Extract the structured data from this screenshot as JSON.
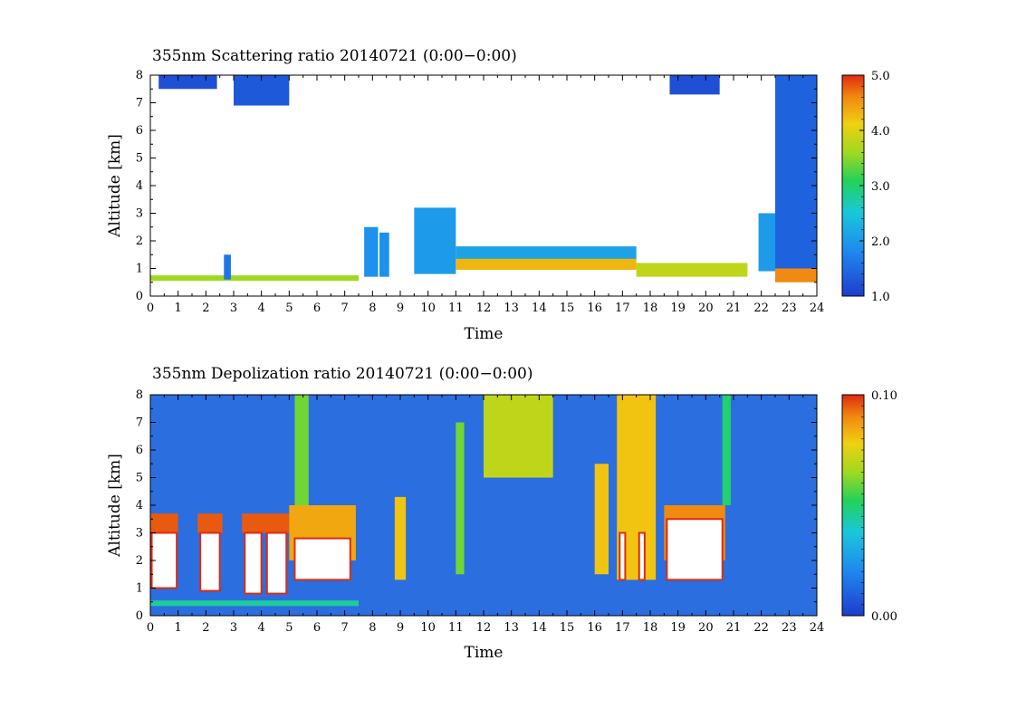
{
  "chart_data": [
    {
      "type": "heatmap",
      "title": "355nm Scattering ratio  20140721 (0:00−0:00)",
      "xlabel": "Time",
      "ylabel": "Altitude [km]",
      "xlim": [
        0,
        24
      ],
      "ylim": [
        0,
        8
      ],
      "x_ticks": [
        "0",
        "1",
        "2",
        "3",
        "4",
        "5",
        "6",
        "7",
        "8",
        "9",
        "10",
        "11",
        "12",
        "13",
        "14",
        "15",
        "16",
        "17",
        "18",
        "19",
        "20",
        "21",
        "22",
        "23",
        "24"
      ],
      "y_ticks": [
        "0",
        "1",
        "2",
        "3",
        "4",
        "5",
        "6",
        "7",
        "8"
      ],
      "colorbar": {
        "min": 1.0,
        "max": 5.0,
        "labels": [
          "1.0",
          "2.0",
          "3.0",
          "4.0",
          "5.0"
        ]
      },
      "regions": [
        {
          "x0": 0.0,
          "x1": 7.5,
          "y0": 0.55,
          "y1": 0.75,
          "value": 3.6
        },
        {
          "x0": 2.65,
          "x1": 2.9,
          "y0": 0.6,
          "y1": 1.5,
          "value": 1.6
        },
        {
          "x0": 7.7,
          "x1": 8.2,
          "y0": 0.7,
          "y1": 2.5,
          "value": 1.9
        },
        {
          "x0": 8.25,
          "x1": 8.6,
          "y0": 0.7,
          "y1": 2.3,
          "value": 1.9
        },
        {
          "x0": 9.5,
          "x1": 11.0,
          "y0": 0.8,
          "y1": 3.2,
          "value": 2.0
        },
        {
          "x0": 11.0,
          "x1": 17.5,
          "y0": 1.3,
          "y1": 1.8,
          "value": 2.1
        },
        {
          "x0": 11.0,
          "x1": 17.5,
          "y0": 0.95,
          "y1": 1.35,
          "value": 4.3
        },
        {
          "x0": 17.5,
          "x1": 21.5,
          "y0": 0.7,
          "y1": 1.2,
          "value": 3.8
        },
        {
          "x0": 21.9,
          "x1": 23.0,
          "y0": 0.9,
          "y1": 3.0,
          "value": 2.0
        },
        {
          "x0": 22.5,
          "x1": 24.0,
          "y0": 0.5,
          "y1": 1.0,
          "value": 4.6
        },
        {
          "x0": 22.5,
          "x1": 24.0,
          "y0": 1.0,
          "y1": 8.0,
          "value": 1.4
        },
        {
          "x0": 3.0,
          "x1": 5.0,
          "y0": 6.9,
          "y1": 8.0,
          "value": 1.3
        },
        {
          "x0": 0.3,
          "x1": 2.4,
          "y0": 7.5,
          "y1": 8.0,
          "value": 1.2
        },
        {
          "x0": 18.7,
          "x1": 20.5,
          "y0": 7.3,
          "y1": 8.0,
          "value": 1.2
        }
      ]
    },
    {
      "type": "heatmap",
      "title": "355nm Depolization ratio  20140721 (0:00−0:00)",
      "xlabel": "Time",
      "ylabel": "Altitude [km]",
      "xlim": [
        0,
        24
      ],
      "ylim": [
        0,
        8
      ],
      "x_ticks": [
        "0",
        "1",
        "2",
        "3",
        "4",
        "5",
        "6",
        "7",
        "8",
        "9",
        "10",
        "11",
        "12",
        "13",
        "14",
        "15",
        "16",
        "17",
        "18",
        "19",
        "20",
        "21",
        "22",
        "23",
        "24"
      ],
      "y_ticks": [
        "0",
        "1",
        "2",
        "3",
        "4",
        "5",
        "6",
        "7",
        "8"
      ],
      "colorbar": {
        "min": 0.0,
        "max": 0.1,
        "labels": [
          "0.00",
          "0.10"
        ]
      },
      "background_value": 0.015,
      "regions": [
        {
          "x0": 0.0,
          "x1": 7.5,
          "y0": 0.35,
          "y1": 0.55,
          "value": 0.045
        },
        {
          "x0": 0.0,
          "x1": 1.0,
          "y0": 3.0,
          "y1": 3.7,
          "value": 0.095
        },
        {
          "x0": 1.7,
          "x1": 2.6,
          "y0": 3.0,
          "y1": 3.7,
          "value": 0.095
        },
        {
          "x0": 3.3,
          "x1": 5.0,
          "y0": 3.0,
          "y1": 3.7,
          "value": 0.095
        },
        {
          "x0": 5.0,
          "x1": 7.4,
          "y0": 2.0,
          "y1": 4.0,
          "value": 0.085
        },
        {
          "x0": 5.2,
          "x1": 5.7,
          "y0": 4.0,
          "y1": 8.0,
          "value": 0.06
        },
        {
          "x0": 8.8,
          "x1": 9.2,
          "y0": 1.3,
          "y1": 4.3,
          "value": 0.08
        },
        {
          "x0": 11.0,
          "x1": 11.3,
          "y0": 1.5,
          "y1": 7.0,
          "value": 0.06
        },
        {
          "x0": 12.0,
          "x1": 14.5,
          "y0": 5.0,
          "y1": 8.0,
          "value": 0.07
        },
        {
          "x0": 16.0,
          "x1": 16.5,
          "y0": 1.5,
          "y1": 5.5,
          "value": 0.08
        },
        {
          "x0": 16.8,
          "x1": 18.2,
          "y0": 1.3,
          "y1": 8.0,
          "value": 0.08
        },
        {
          "x0": 18.5,
          "x1": 20.7,
          "y0": 2.0,
          "y1": 4.0,
          "value": 0.09
        },
        {
          "x0": 20.6,
          "x1": 20.9,
          "y0": 4.0,
          "y1": 8.0,
          "value": 0.05
        }
      ],
      "saturated_regions": [
        {
          "x0": 0.05,
          "x1": 0.95,
          "y0": 1.0,
          "y1": 3.0
        },
        {
          "x0": 1.8,
          "x1": 2.5,
          "y0": 0.9,
          "y1": 3.0
        },
        {
          "x0": 3.4,
          "x1": 4.0,
          "y0": 0.8,
          "y1": 3.0
        },
        {
          "x0": 4.2,
          "x1": 4.9,
          "y0": 0.8,
          "y1": 3.0
        },
        {
          "x0": 5.2,
          "x1": 7.2,
          "y0": 1.3,
          "y1": 2.8
        },
        {
          "x0": 18.6,
          "x1": 20.6,
          "y0": 1.3,
          "y1": 3.5
        },
        {
          "x0": 16.9,
          "x1": 17.1,
          "y0": 1.3,
          "y1": 3.0
        },
        {
          "x0": 17.6,
          "x1": 17.8,
          "y0": 1.3,
          "y1": 3.0
        }
      ]
    }
  ]
}
